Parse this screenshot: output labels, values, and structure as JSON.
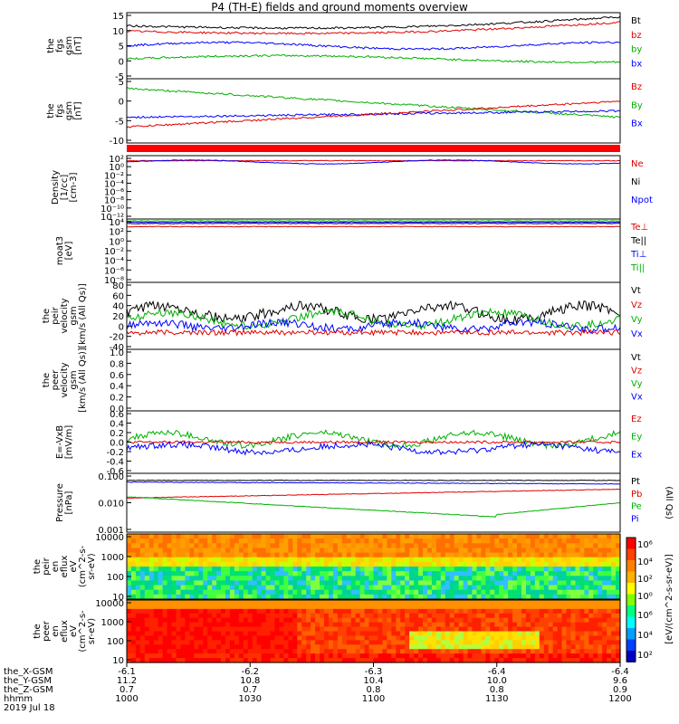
{
  "title": "P4 (TH-E) fields and ground moments overview",
  "panels": [
    {
      "id": "fgs-gse",
      "ylabel": [
        "the",
        "fgs",
        "gsm",
        "[nT]"
      ],
      "ticks": [
        "15",
        "10",
        "5",
        "0",
        "-5"
      ],
      "legend": [
        {
          "t": "Bt",
          "c": "#000000"
        },
        {
          "t": "bz",
          "c": "#e00000"
        },
        {
          "t": "by",
          "c": "#00b000"
        },
        {
          "t": "bx",
          "c": "#0000ff"
        }
      ]
    },
    {
      "id": "fgs-gsm",
      "ylabel": [
        "the",
        "fgs",
        "gsm",
        "[nT]"
      ],
      "ticks": [
        "5",
        "0",
        "-5",
        "-10"
      ],
      "legend": [
        {
          "t": "Bz",
          "c": "#e00000"
        },
        {
          "t": "By",
          "c": "#00b000"
        },
        {
          "t": "Bx",
          "c": "#0000ff"
        }
      ]
    },
    {
      "id": "density",
      "ylabel": [
        "Density",
        "[1/cc]",
        "[cm-3]"
      ],
      "ticks": [
        "10²",
        "10⁰",
        "10⁻²",
        "10⁻⁴",
        "10⁻⁶",
        "10⁻⁸",
        "10⁻¹⁰",
        "10⁻¹²"
      ],
      "legend": [
        {
          "t": "Ne",
          "c": "#e00000"
        },
        {
          "t": "Ni",
          "c": "#000000"
        },
        {
          "t": "Npot",
          "c": "#0000ff"
        }
      ]
    },
    {
      "id": "temp",
      "ylabel": [
        "moat3",
        "[eV]"
      ],
      "ticks": [
        "10⁴",
        "10²",
        "10⁰",
        "10⁻²",
        "10⁻⁴",
        "10⁻⁶",
        "10⁻⁸"
      ],
      "legend": [
        {
          "t": "Te⊥",
          "c": "#e00000"
        },
        {
          "t": "Te||",
          "c": "#000000"
        },
        {
          "t": "Ti⊥",
          "c": "#0000ff"
        },
        {
          "t": "Ti||",
          "c": "#00b000"
        }
      ]
    },
    {
      "id": "peir-vel",
      "ylabel": [
        "the",
        "peir",
        "velocity",
        "gsm",
        "[km/s (All Qs)]"
      ],
      "ticks": [
        "80",
        "60",
        "40",
        "20",
        "0",
        "-20",
        "-40"
      ],
      "legend": [
        {
          "t": "Vt",
          "c": "#000000"
        },
        {
          "t": "Vz",
          "c": "#e00000"
        },
        {
          "t": "Vy",
          "c": "#00b000"
        },
        {
          "t": "Vx",
          "c": "#0000ff"
        }
      ]
    },
    {
      "id": "peer-vel",
      "ylabel": [
        "the",
        "peer",
        "velocity",
        "gsm",
        "[km/s (All Qs)]"
      ],
      "ticks": [
        "1.0",
        "0.8",
        "0.6",
        "0.4",
        "0.2",
        "0.0"
      ],
      "legend": [
        {
          "t": "Vt",
          "c": "#000000"
        },
        {
          "t": "Vz",
          "c": "#e00000"
        },
        {
          "t": "Vy",
          "c": "#00b000"
        },
        {
          "t": "Vx",
          "c": "#0000ff"
        }
      ]
    },
    {
      "id": "efield",
      "ylabel": [
        "E=-VxB",
        "[mV/m]"
      ],
      "ticks": [
        "0.6",
        "0.4",
        "0.2",
        "0.0",
        "-0.2",
        "-0.4",
        "-0.6"
      ],
      "legend": [
        {
          "t": "Ez",
          "c": "#e00000"
        },
        {
          "t": "Ey",
          "c": "#00b000"
        },
        {
          "t": "Ex",
          "c": "#0000ff"
        }
      ]
    },
    {
      "id": "pressure",
      "ylabel": [
        "Pressure",
        "[nPa]"
      ],
      "ticks": [
        "0.100",
        "0.010",
        "0.001"
      ],
      "legend": [
        {
          "t": "Pt",
          "c": "#000000"
        },
        {
          "t": "Pb",
          "c": "#e00000"
        },
        {
          "t": "Pe",
          "c": "#00b000"
        },
        {
          "t": "Pi",
          "c": "#0000ff"
        }
      ],
      "side": "(All Qs)"
    },
    {
      "id": "peir-spec",
      "ylabel": [
        "the",
        "peir",
        "en",
        "eflux",
        "eV",
        "(cm^2-s-",
        "sr-eV)"
      ],
      "ticks": [
        "10000",
        "1000",
        "100",
        "10"
      ]
    },
    {
      "id": "peer-spec",
      "ylabel": [
        "the",
        "peer",
        "en",
        "eflux",
        "eV",
        "(cm^2-s-",
        "sr-eV)"
      ],
      "ticks": [
        "10000",
        "1000",
        "100",
        "10"
      ]
    }
  ],
  "colorbar": {
    "upper_ticks": [
      "10⁶",
      "10⁴",
      "10²",
      "10⁰"
    ],
    "lower_ticks": [
      "10⁶",
      "10⁴",
      "10²"
    ],
    "label": "[eV/(cm^2-s-sr-eV)]"
  },
  "xaxis": {
    "rows": [
      {
        "label": "the_X-GSM",
        "values": [
          "-6.1",
          "-6.2",
          "-6.3",
          "-6.4",
          "-6.4"
        ]
      },
      {
        "label": "the_Y-GSM",
        "values": [
          "11.2",
          "10.8",
          "10.4",
          "10.0",
          "9.6"
        ]
      },
      {
        "label": "the_Z-GSM",
        "values": [
          "0.7",
          "0.7",
          "0.8",
          "0.8",
          "0.9"
        ]
      },
      {
        "label": "hhmm",
        "values": [
          "1000",
          "1030",
          "1100",
          "1130",
          "1200"
        ]
      }
    ],
    "date": "2019 Jul 18"
  },
  "chart_data": {
    "type": "line",
    "x": [
      "1000",
      "1030",
      "1100",
      "1130",
      "1200"
    ],
    "series": [
      {
        "name": "Bt",
        "values": [
          8,
          6,
          8,
          10,
          14
        ]
      },
      {
        "name": "bz",
        "values": [
          7,
          5,
          6,
          9,
          12
        ]
      },
      {
        "name": "by",
        "values": [
          2,
          1,
          3,
          2,
          3
        ]
      },
      {
        "name": "bx",
        "values": [
          -1,
          -2,
          -1,
          -1,
          1
        ]
      },
      {
        "name": "Vt",
        "values": [
          30,
          25,
          40,
          30,
          25
        ]
      },
      {
        "name": "Pt",
        "values": [
          0.25,
          0.22,
          0.2,
          0.2,
          0.18
        ]
      },
      {
        "name": "Pb",
        "values": [
          0.03,
          0.03,
          0.04,
          0.05,
          0.06
        ]
      },
      {
        "name": "Pe",
        "values": [
          0.04,
          0.03,
          0.02,
          0.006,
          0.02
        ]
      },
      {
        "name": "Pi",
        "values": [
          0.2,
          0.18,
          0.17,
          0.16,
          0.15
        ]
      }
    ]
  }
}
